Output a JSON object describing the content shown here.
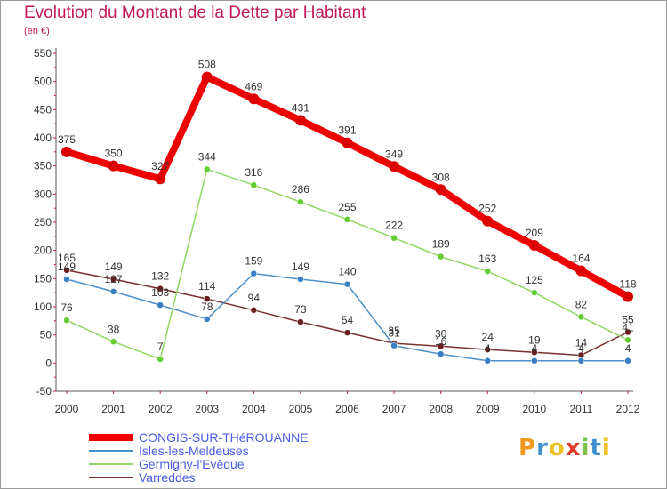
{
  "title": "Evolution du Montant de la Dette par Habitant",
  "subtitle": "(en €)",
  "logo_text": "Proxiti",
  "chart_data": {
    "type": "line",
    "title": "Evolution du Montant de la Dette par Habitant",
    "ylabel": "(en €)",
    "ylim": [
      -50,
      550
    ],
    "y_ticks": [
      -50,
      0,
      50,
      100,
      150,
      200,
      250,
      300,
      350,
      400,
      450,
      500,
      550
    ],
    "x": [
      "2000",
      "2001",
      "2002",
      "2003",
      "2004",
      "2005",
      "2006",
      "2007",
      "2008",
      "2009",
      "2010",
      "2011",
      "2012"
    ],
    "grid": false,
    "legend_position": "bottom-left",
    "series": [
      {
        "name": "CONGIS-SUR-THéROUANNE",
        "color": "#ee0000",
        "point_color": "#dd0000",
        "values": [
          375,
          350,
          327,
          508,
          469,
          431,
          391,
          349,
          308,
          252,
          209,
          164,
          118
        ],
        "labels": [
          "375",
          "350",
          "327",
          "508",
          "469",
          "431",
          "391",
          "349",
          "308",
          "252",
          "209",
          "164",
          "118"
        ]
      },
      {
        "name": "Isles-les-Meldeuses",
        "color": "#4d8fc6",
        "point_color": "#3a7fc2",
        "values": [
          149,
          127,
          103,
          78,
          159,
          149,
          140,
          31,
          16,
          4,
          4,
          4,
          4
        ],
        "labels": [
          "149",
          "127",
          "103",
          "78",
          "159",
          "149",
          "140",
          "31",
          "16",
          "4",
          "4",
          "4",
          "4"
        ]
      },
      {
        "name": "Germigny-l'Evêque",
        "color": "#90d860",
        "point_color": "#66cc33",
        "values": [
          76,
          38,
          7,
          344,
          316,
          286,
          255,
          222,
          189,
          163,
          125,
          82,
          41
        ],
        "labels": [
          "76",
          "38",
          "7",
          "344",
          "316",
          "286",
          "255",
          "222",
          "189",
          "163",
          "125",
          "82",
          "41"
        ]
      },
      {
        "name": "Varreddes",
        "color": "#7a2f2f",
        "point_color": "#6a1f1f",
        "values": [
          165,
          149,
          132,
          114,
          94,
          73,
          54,
          35,
          30,
          24,
          19,
          14,
          55
        ],
        "labels": [
          "165",
          "149",
          "132",
          "114",
          "94",
          "73",
          "54",
          "35",
          "30",
          "24",
          "19",
          "14",
          "55"
        ]
      }
    ]
  }
}
